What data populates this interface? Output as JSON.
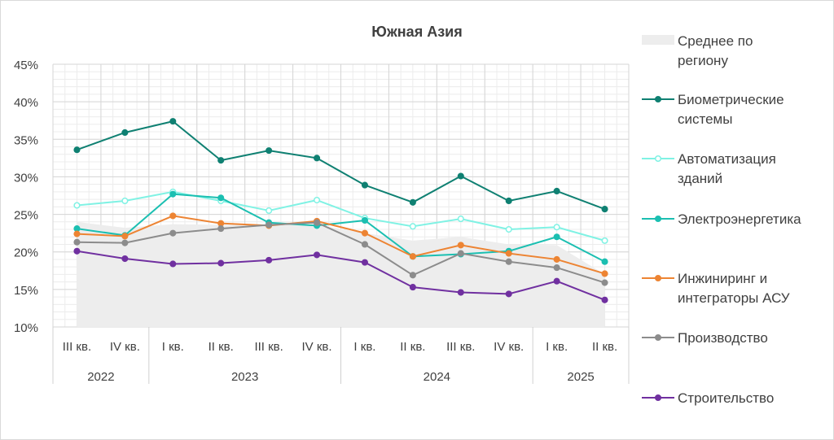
{
  "chart_data": {
    "type": "line",
    "title": "Южная Азия",
    "x_quarters": [
      "III кв.",
      "IV кв.",
      "I кв.",
      "II кв.",
      "III кв.",
      "IV кв.",
      "I кв.",
      "II кв.",
      "III кв.",
      "IV кв.",
      "I кв.",
      "II кв."
    ],
    "x_years": [
      {
        "label": "2022",
        "span": 2
      },
      {
        "label": "2023",
        "span": 4
      },
      {
        "label": "2024",
        "span": 4
      },
      {
        "label": "2025",
        "span": 2
      }
    ],
    "yticks": [
      "10%",
      "15%",
      "20%",
      "25%",
      "30%",
      "35%",
      "40%",
      "45%"
    ],
    "ylim": [
      10,
      45
    ],
    "y_unit": "%",
    "grid": true,
    "legend_position": "right",
    "area": {
      "name": "Среднее по региону",
      "color": "#ededed",
      "values": [
        24.0,
        23.2,
        23.7,
        23.6,
        23.6,
        23.6,
        22.5,
        21.5,
        22.0,
        21.0,
        20.9,
        17.0
      ]
    },
    "series": [
      {
        "name": "Биометрические системы",
        "color": "#0f8072",
        "marker_fill": "#0f8072",
        "values": [
          33.6,
          35.9,
          37.4,
          32.2,
          33.5,
          32.5,
          28.9,
          26.6,
          30.1,
          26.8,
          28.1,
          25.7
        ]
      },
      {
        "name": "Автоматизация зданий",
        "color": "#80f2e4",
        "marker_fill": "#ffffff",
        "values": [
          26.2,
          26.8,
          28.0,
          26.8,
          25.5,
          26.9,
          24.5,
          23.4,
          24.4,
          23.0,
          23.3,
          21.5
        ]
      },
      {
        "name": "Электроэнергетика",
        "color": "#1bbfb1",
        "marker_fill": "#1bbfb1",
        "values": [
          23.1,
          22.2,
          27.7,
          27.2,
          23.9,
          23.5,
          24.2,
          19.4,
          19.7,
          20.1,
          22.0,
          18.7
        ]
      },
      {
        "name": "Инжиниринг и интеграторы АСУ",
        "color": "#ed8433",
        "marker_fill": "#ed8433",
        "values": [
          22.4,
          22.1,
          24.8,
          23.8,
          23.5,
          24.1,
          22.5,
          19.4,
          20.9,
          19.8,
          19.0,
          17.1
        ]
      },
      {
        "name": "Производство",
        "color": "#8c8c8c",
        "marker_fill": "#8c8c8c",
        "values": [
          21.3,
          21.2,
          22.5,
          23.1,
          23.6,
          23.9,
          21.0,
          16.9,
          19.8,
          18.7,
          17.9,
          15.9
        ]
      },
      {
        "name": "Строительство",
        "color": "#7030a0",
        "marker_fill": "#7030a0",
        "values": [
          20.1,
          19.1,
          18.4,
          18.5,
          18.9,
          19.6,
          18.6,
          15.3,
          14.6,
          14.4,
          16.1,
          13.6
        ]
      }
    ],
    "legend": [
      {
        "lines": [
          "Среднее по",
          "региону"
        ],
        "ref": "area"
      },
      {
        "lines": [
          "Биометрические",
          "системы"
        ],
        "ref": 0
      },
      {
        "lines": [
          "Автоматизация",
          "зданий"
        ],
        "ref": 1
      },
      {
        "lines": [
          "Электроэнергетика"
        ],
        "ref": 2
      },
      {
        "lines": [
          "Инжиниринг и",
          "интеграторы АСУ"
        ],
        "ref": 3
      },
      {
        "lines": [
          "Производство"
        ],
        "ref": 4
      },
      {
        "lines": [
          "Строительство"
        ],
        "ref": 5
      }
    ]
  }
}
